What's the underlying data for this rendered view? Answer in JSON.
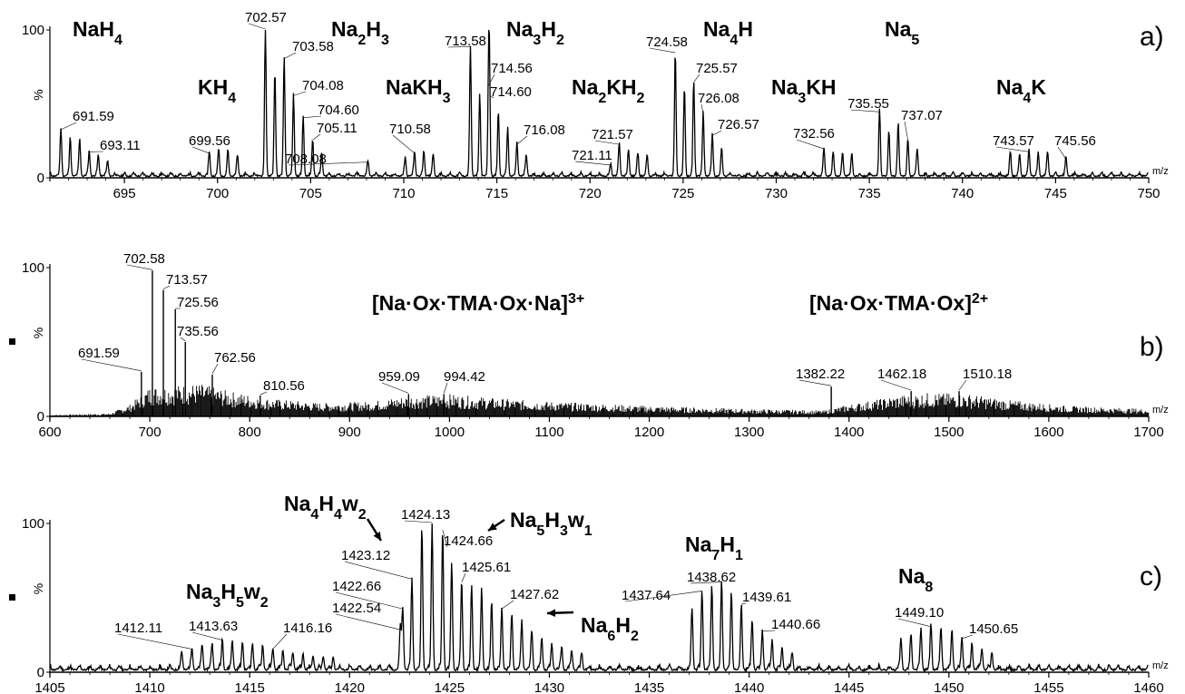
{
  "colors": {
    "trace": "#000000",
    "background": "#ffffff"
  },
  "chart_data": [
    {
      "type": "line",
      "panel": "a)",
      "xlabel": "m/z",
      "ylabel": "%",
      "xlim": [
        691,
        750
      ],
      "ylim": [
        0,
        100
      ],
      "x_ticks": [
        "695",
        "700",
        "705",
        "710",
        "715",
        "720",
        "725",
        "730",
        "735",
        "740",
        "745",
        "750"
      ],
      "y_ticks": [
        "0",
        "100"
      ],
      "base_spacing": 0.5,
      "baseline": 3,
      "peaks": [
        {
          "x": 691.59,
          "y": 32
        },
        {
          "x": 692.09,
          "y": 26
        },
        {
          "x": 692.6,
          "y": 25
        },
        {
          "x": 693.11,
          "y": 17
        },
        {
          "x": 693.6,
          "y": 14
        },
        {
          "x": 694.1,
          "y": 10
        },
        {
          "x": 699.56,
          "y": 16
        },
        {
          "x": 700.06,
          "y": 18
        },
        {
          "x": 700.56,
          "y": 17
        },
        {
          "x": 701.07,
          "y": 14
        },
        {
          "x": 702.57,
          "y": 100
        },
        {
          "x": 703.08,
          "y": 70
        },
        {
          "x": 703.58,
          "y": 80
        },
        {
          "x": 704.08,
          "y": 55
        },
        {
          "x": 704.6,
          "y": 40
        },
        {
          "x": 705.11,
          "y": 25
        },
        {
          "x": 705.6,
          "y": 15
        },
        {
          "x": 708.08,
          "y": 10
        },
        {
          "x": 710.08,
          "y": 12
        },
        {
          "x": 710.58,
          "y": 16
        },
        {
          "x": 711.08,
          "y": 17
        },
        {
          "x": 711.58,
          "y": 15
        },
        {
          "x": 713.58,
          "y": 88
        },
        {
          "x": 714.08,
          "y": 55
        },
        {
          "x": 714.56,
          "y": 62
        },
        {
          "x": 714.6,
          "y": 55
        },
        {
          "x": 715.08,
          "y": 43
        },
        {
          "x": 715.58,
          "y": 32
        },
        {
          "x": 716.08,
          "y": 22
        },
        {
          "x": 716.58,
          "y": 14
        },
        {
          "x": 721.11,
          "y": 8
        },
        {
          "x": 721.57,
          "y": 22
        },
        {
          "x": 722.07,
          "y": 17
        },
        {
          "x": 722.57,
          "y": 15
        },
        {
          "x": 723.07,
          "y": 14
        },
        {
          "x": 724.58,
          "y": 84
        },
        {
          "x": 725.07,
          "y": 60
        },
        {
          "x": 725.57,
          "y": 64
        },
        {
          "x": 726.08,
          "y": 43
        },
        {
          "x": 726.57,
          "y": 28
        },
        {
          "x": 727.07,
          "y": 18
        },
        {
          "x": 732.56,
          "y": 19
        },
        {
          "x": 733.06,
          "y": 16
        },
        {
          "x": 733.56,
          "y": 15
        },
        {
          "x": 734.06,
          "y": 14
        },
        {
          "x": 735.55,
          "y": 44
        },
        {
          "x": 736.05,
          "y": 30
        },
        {
          "x": 736.55,
          "y": 35
        },
        {
          "x": 737.07,
          "y": 25
        },
        {
          "x": 737.57,
          "y": 18
        },
        {
          "x": 742.57,
          "y": 16
        },
        {
          "x": 743.07,
          "y": 14
        },
        {
          "x": 743.57,
          "y": 17
        },
        {
          "x": 744.07,
          "y": 15
        },
        {
          "x": 744.57,
          "y": 16
        },
        {
          "x": 745.56,
          "y": 12
        }
      ],
      "peak_labels": [
        {
          "text": "691.59",
          "x": 691.59,
          "y": 32
        },
        {
          "text": "693.11",
          "x": 693.11,
          "y": 17
        },
        {
          "text": "699.56",
          "x": 699.56,
          "y": 16
        },
        {
          "text": "702.57",
          "x": 702.57,
          "y": 100
        },
        {
          "text": "703.58",
          "x": 703.58,
          "y": 80
        },
        {
          "text": "704.08",
          "x": 704.08,
          "y": 55
        },
        {
          "text": "704.60",
          "x": 704.6,
          "y": 40
        },
        {
          "text": "705.11",
          "x": 705.11,
          "y": 25
        },
        {
          "text": "708.08",
          "x": 708.08,
          "y": 10
        },
        {
          "text": "710.58",
          "x": 710.58,
          "y": 16
        },
        {
          "text": "713.58",
          "x": 713.58,
          "y": 88
        },
        {
          "text": "714.56",
          "x": 714.56,
          "y": 62
        },
        {
          "text": "714.60",
          "x": 714.6,
          "y": 55
        },
        {
          "text": "716.08",
          "x": 716.08,
          "y": 22
        },
        {
          "text": "721.57",
          "x": 721.57,
          "y": 22
        },
        {
          "text": "721.11",
          "x": 721.11,
          "y": 8
        },
        {
          "text": "724.58",
          "x": 724.58,
          "y": 84
        },
        {
          "text": "725.57",
          "x": 725.57,
          "y": 64
        },
        {
          "text": "726.08",
          "x": 726.08,
          "y": 43
        },
        {
          "text": "726.57",
          "x": 726.57,
          "y": 28
        },
        {
          "text": "732.56",
          "x": 732.56,
          "y": 19
        },
        {
          "text": "735.55",
          "x": 735.55,
          "y": 44
        },
        {
          "text": "737.07",
          "x": 737.07,
          "y": 25
        },
        {
          "text": "743.57",
          "x": 743.57,
          "y": 17
        },
        {
          "text": "745.56",
          "x": 745.56,
          "y": 12
        }
      ],
      "annotations": [
        {
          "base": "NaH",
          "sub": "4"
        },
        {
          "base": "KH",
          "sub": "4"
        },
        {
          "base": "Na",
          "sub": "2",
          "base2": "H",
          "sub2": "3"
        },
        {
          "base": "NaKH",
          "sub": "3"
        },
        {
          "base": "Na",
          "sub": "3",
          "base2": "H",
          "sub2": "2"
        },
        {
          "base": "Na",
          "sub": "2",
          "base2": "KH",
          "sub2": "2"
        },
        {
          "base": "Na",
          "sub": "4",
          "base2": "H"
        },
        {
          "base": "Na",
          "sub": "3",
          "base2": "KH"
        },
        {
          "base": "Na",
          "sub": "5"
        },
        {
          "base": "Na",
          "sub": "4",
          "base2": "K"
        }
      ]
    },
    {
      "type": "line",
      "panel": "b)",
      "xlabel": "m/z",
      "ylabel": "%",
      "xlim": [
        600,
        1700
      ],
      "ylim": [
        0,
        100
      ],
      "x_ticks": [
        "600",
        "700",
        "800",
        "900",
        "1000",
        "1100",
        "1200",
        "1300",
        "1400",
        "1500",
        "1600",
        "1700"
      ],
      "y_ticks": [
        "0",
        "100"
      ],
      "peaks": [
        {
          "x": 691.59,
          "y": 30
        },
        {
          "x": 702.58,
          "y": 98
        },
        {
          "x": 713.57,
          "y": 85
        },
        {
          "x": 725.56,
          "y": 72
        },
        {
          "x": 735.56,
          "y": 50
        },
        {
          "x": 762.56,
          "y": 28
        },
        {
          "x": 810.56,
          "y": 14
        },
        {
          "x": 959.09,
          "y": 15
        },
        {
          "x": 994.42,
          "y": 15
        },
        {
          "x": 1382.22,
          "y": 20
        },
        {
          "x": 1462.18,
          "y": 17
        },
        {
          "x": 1510.18,
          "y": 17
        }
      ],
      "envelope": [
        {
          "x": 600,
          "y": 1
        },
        {
          "x": 660,
          "y": 2
        },
        {
          "x": 680,
          "y": 8
        },
        {
          "x": 700,
          "y": 20
        },
        {
          "x": 750,
          "y": 22
        },
        {
          "x": 780,
          "y": 17
        },
        {
          "x": 820,
          "y": 12
        },
        {
          "x": 870,
          "y": 9
        },
        {
          "x": 920,
          "y": 10
        },
        {
          "x": 960,
          "y": 14
        },
        {
          "x": 1000,
          "y": 15
        },
        {
          "x": 1050,
          "y": 12
        },
        {
          "x": 1100,
          "y": 10
        },
        {
          "x": 1200,
          "y": 7
        },
        {
          "x": 1300,
          "y": 5
        },
        {
          "x": 1375,
          "y": 4
        },
        {
          "x": 1400,
          "y": 8
        },
        {
          "x": 1450,
          "y": 14
        },
        {
          "x": 1480,
          "y": 16
        },
        {
          "x": 1520,
          "y": 15
        },
        {
          "x": 1560,
          "y": 11
        },
        {
          "x": 1620,
          "y": 7
        },
        {
          "x": 1700,
          "y": 5
        }
      ],
      "peak_labels": [
        {
          "text": "702.58",
          "x": 702.58,
          "y": 98
        },
        {
          "text": "713.57",
          "x": 713.57,
          "y": 85
        },
        {
          "text": "725.56",
          "x": 725.56,
          "y": 72
        },
        {
          "text": "735.56",
          "x": 735.56,
          "y": 50
        },
        {
          "text": "691.59",
          "x": 691.59,
          "y": 30
        },
        {
          "text": "762.56",
          "x": 762.56,
          "y": 28
        },
        {
          "text": "810.56",
          "x": 810.56,
          "y": 14
        },
        {
          "text": "959.09",
          "x": 959.09,
          "y": 15
        },
        {
          "text": "994.42",
          "x": 994.42,
          "y": 15
        },
        {
          "text": "1382.22",
          "x": 1382.22,
          "y": 20
        },
        {
          "text": "1462.18",
          "x": 1462.18,
          "y": 17
        },
        {
          "text": "1510.18",
          "x": 1510.18,
          "y": 17
        }
      ],
      "annotations": [
        {
          "base": "[Na·Ox·TMA·Ox·Na]",
          "sup": "3+"
        },
        {
          "base": "[Na·Ox·TMA·Ox]",
          "sup": "2+"
        }
      ]
    },
    {
      "type": "line",
      "panel": "c)",
      "xlabel": "m/z",
      "ylabel": "%",
      "xlim": [
        1405,
        1460
      ],
      "ylim": [
        0,
        100
      ],
      "x_ticks": [
        "1405",
        "1410",
        "1415",
        "1420",
        "1425",
        "1430",
        "1435",
        "1440",
        "1445",
        "1450",
        "1455",
        "1460"
      ],
      "y_ticks": [
        "0",
        "100"
      ],
      "base_spacing": 0.5,
      "baseline": 4,
      "peaks": [
        {
          "x": 1411.6,
          "y": 12
        },
        {
          "x": 1412.11,
          "y": 15
        },
        {
          "x": 1412.62,
          "y": 17
        },
        {
          "x": 1413.12,
          "y": 18
        },
        {
          "x": 1413.63,
          "y": 21
        },
        {
          "x": 1414.13,
          "y": 20
        },
        {
          "x": 1414.64,
          "y": 19
        },
        {
          "x": 1415.14,
          "y": 18
        },
        {
          "x": 1415.65,
          "y": 17
        },
        {
          "x": 1416.16,
          "y": 15
        },
        {
          "x": 1416.66,
          "y": 13
        },
        {
          "x": 1417.16,
          "y": 12
        },
        {
          "x": 1417.67,
          "y": 11
        },
        {
          "x": 1418.17,
          "y": 10
        },
        {
          "x": 1418.68,
          "y": 9
        },
        {
          "x": 1419.18,
          "y": 9
        },
        {
          "x": 1422.54,
          "y": 28
        },
        {
          "x": 1422.66,
          "y": 42
        },
        {
          "x": 1423.12,
          "y": 62
        },
        {
          "x": 1423.62,
          "y": 96
        },
        {
          "x": 1424.13,
          "y": 100
        },
        {
          "x": 1424.66,
          "y": 95
        },
        {
          "x": 1425.11,
          "y": 72
        },
        {
          "x": 1425.61,
          "y": 60
        },
        {
          "x": 1426.11,
          "y": 56
        },
        {
          "x": 1426.61,
          "y": 55
        },
        {
          "x": 1427.11,
          "y": 46
        },
        {
          "x": 1427.62,
          "y": 42
        },
        {
          "x": 1428.12,
          "y": 38
        },
        {
          "x": 1428.62,
          "y": 33
        },
        {
          "x": 1429.12,
          "y": 27
        },
        {
          "x": 1429.62,
          "y": 22
        },
        {
          "x": 1430.12,
          "y": 18
        },
        {
          "x": 1430.62,
          "y": 15
        },
        {
          "x": 1431.12,
          "y": 13
        },
        {
          "x": 1431.62,
          "y": 11
        },
        {
          "x": 1437.14,
          "y": 42
        },
        {
          "x": 1437.64,
          "y": 54
        },
        {
          "x": 1438.13,
          "y": 57
        },
        {
          "x": 1438.62,
          "y": 60
        },
        {
          "x": 1439.11,
          "y": 52
        },
        {
          "x": 1439.61,
          "y": 45
        },
        {
          "x": 1440.15,
          "y": 34
        },
        {
          "x": 1440.66,
          "y": 27
        },
        {
          "x": 1441.15,
          "y": 20
        },
        {
          "x": 1441.65,
          "y": 15
        },
        {
          "x": 1442.15,
          "y": 12
        },
        {
          "x": 1447.6,
          "y": 20
        },
        {
          "x": 1448.1,
          "y": 24
        },
        {
          "x": 1448.6,
          "y": 27
        },
        {
          "x": 1449.1,
          "y": 30
        },
        {
          "x": 1449.6,
          "y": 28
        },
        {
          "x": 1450.15,
          "y": 27
        },
        {
          "x": 1450.65,
          "y": 22
        },
        {
          "x": 1451.15,
          "y": 18
        },
        {
          "x": 1451.65,
          "y": 15
        },
        {
          "x": 1452.15,
          "y": 12
        }
      ],
      "peak_labels": [
        {
          "text": "1412.11",
          "x": 1412.11,
          "y": 15
        },
        {
          "text": "1413.63",
          "x": 1413.63,
          "y": 21
        },
        {
          "text": "1416.16",
          "x": 1416.16,
          "y": 15
        },
        {
          "text": "1422.54",
          "x": 1422.54,
          "y": 28
        },
        {
          "text": "1422.66",
          "x": 1422.66,
          "y": 42
        },
        {
          "text": "1423.12",
          "x": 1423.12,
          "y": 62
        },
        {
          "text": "1424.13",
          "x": 1424.13,
          "y": 100
        },
        {
          "text": "1424.66",
          "x": 1424.66,
          "y": 95
        },
        {
          "text": "1425.61",
          "x": 1425.61,
          "y": 60
        },
        {
          "text": "1427.62",
          "x": 1427.62,
          "y": 42
        },
        {
          "text": "1437.64",
          "x": 1437.64,
          "y": 54
        },
        {
          "text": "1438.62",
          "x": 1438.62,
          "y": 60
        },
        {
          "text": "1439.61",
          "x": 1439.61,
          "y": 45
        },
        {
          "text": "1440.66",
          "x": 1440.66,
          "y": 27
        },
        {
          "text": "1449.10",
          "x": 1449.1,
          "y": 30
        },
        {
          "text": "1450.65",
          "x": 1450.65,
          "y": 22
        }
      ],
      "annotations": [
        {
          "base": "Na",
          "sub": "4",
          "base2": "H",
          "sub2": "4",
          "base3": "w",
          "sub3": "2"
        },
        {
          "base": "Na",
          "sub": "5",
          "base2": "H",
          "sub2": "3",
          "base3": "w",
          "sub3": "1"
        },
        {
          "base": "Na",
          "sub": "3",
          "base2": "H",
          "sub2": "5",
          "base3": "w",
          "sub3": "2"
        },
        {
          "base": "Na",
          "sub": "6",
          "base2": "H",
          "sub2": "2"
        },
        {
          "base": "Na",
          "sub": "7",
          "base2": "H",
          "sub2": "1"
        },
        {
          "base": "Na",
          "sub": "8"
        }
      ]
    }
  ]
}
